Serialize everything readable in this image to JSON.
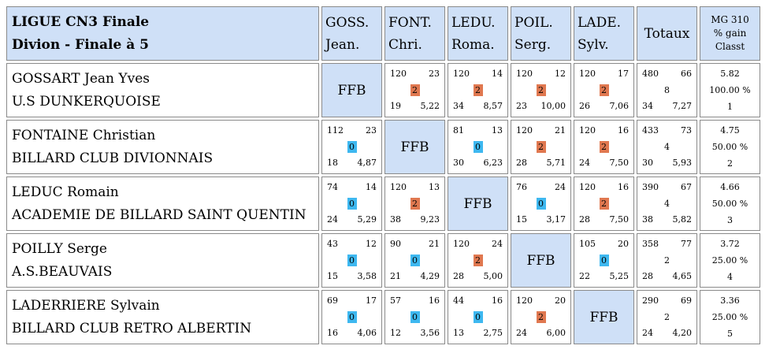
{
  "header": {
    "title_line1": "LIGUE CN3 Finale",
    "title_line2": "Divion - Finale à 5",
    "players": [
      {
        "abbr": "GOSS.",
        "first": "Jean."
      },
      {
        "abbr": "FONT.",
        "first": "Chri."
      },
      {
        "abbr": "LEDU.",
        "first": "Roma."
      },
      {
        "abbr": "POIL.",
        "first": "Serg."
      },
      {
        "abbr": "LADE.",
        "first": "Sylv."
      }
    ],
    "totals_label": "Totaux",
    "mg_line1": "MG 310",
    "mg_line2": "% gain",
    "mg_line3": "Classt"
  },
  "ffb_label": "FFB",
  "colors": {
    "header_bg": "#cfe0f7",
    "win_badge": "#e07850",
    "loss_badge": "#3eb8f0"
  },
  "rows": [
    {
      "name": "GOSSART Jean Yves",
      "club": "U.S DUNKERQUOISE",
      "cells": [
        null,
        {
          "pts": "120",
          "serie": "23",
          "result": "2",
          "reprises": "19",
          "moy": "5,22"
        },
        {
          "pts": "120",
          "serie": "14",
          "result": "2",
          "reprises": "34",
          "moy": "8,57"
        },
        {
          "pts": "120",
          "serie": "12",
          "result": "2",
          "reprises": "23",
          "moy": "10,00"
        },
        {
          "pts": "120",
          "serie": "17",
          "result": "2",
          "reprises": "26",
          "moy": "7,06"
        }
      ],
      "totals": {
        "pts": "480",
        "serie": "66",
        "points": "8",
        "reprises": "34",
        "moy": "7,27"
      },
      "mg": "5.82",
      "gain": "100.00 %",
      "classt": "1"
    },
    {
      "name": "FONTAINE Christian",
      "club": "BILLARD CLUB DIVIONNAIS",
      "cells": [
        {
          "pts": "112",
          "serie": "23",
          "result": "0",
          "reprises": "18",
          "moy": "4,87"
        },
        null,
        {
          "pts": "81",
          "serie": "13",
          "result": "0",
          "reprises": "30",
          "moy": "6,23"
        },
        {
          "pts": "120",
          "serie": "21",
          "result": "2",
          "reprises": "28",
          "moy": "5,71"
        },
        {
          "pts": "120",
          "serie": "16",
          "result": "2",
          "reprises": "24",
          "moy": "7,50"
        }
      ],
      "totals": {
        "pts": "433",
        "serie": "73",
        "points": "4",
        "reprises": "30",
        "moy": "5,93"
      },
      "mg": "4.75",
      "gain": "50.00 %",
      "classt": "2"
    },
    {
      "name": "LEDUC Romain",
      "club": "ACADEMIE DE BILLARD SAINT QUENTIN",
      "cells": [
        {
          "pts": "74",
          "serie": "14",
          "result": "0",
          "reprises": "24",
          "moy": "5,29"
        },
        {
          "pts": "120",
          "serie": "13",
          "result": "2",
          "reprises": "38",
          "moy": "9,23"
        },
        null,
        {
          "pts": "76",
          "serie": "24",
          "result": "0",
          "reprises": "15",
          "moy": "3,17"
        },
        {
          "pts": "120",
          "serie": "16",
          "result": "2",
          "reprises": "28",
          "moy": "7,50"
        }
      ],
      "totals": {
        "pts": "390",
        "serie": "67",
        "points": "4",
        "reprises": "38",
        "moy": "5,82"
      },
      "mg": "4.66",
      "gain": "50.00 %",
      "classt": "3"
    },
    {
      "name": "POILLY Serge",
      "club": "A.S.BEAUVAIS",
      "cells": [
        {
          "pts": "43",
          "serie": "12",
          "result": "0",
          "reprises": "15",
          "moy": "3,58"
        },
        {
          "pts": "90",
          "serie": "21",
          "result": "0",
          "reprises": "21",
          "moy": "4,29"
        },
        {
          "pts": "120",
          "serie": "24",
          "result": "2",
          "reprises": "28",
          "moy": "5,00"
        },
        null,
        {
          "pts": "105",
          "serie": "20",
          "result": "0",
          "reprises": "22",
          "moy": "5,25"
        }
      ],
      "totals": {
        "pts": "358",
        "serie": "77",
        "points": "2",
        "reprises": "28",
        "moy": "4,65"
      },
      "mg": "3.72",
      "gain": "25.00 %",
      "classt": "4"
    },
    {
      "name": "LADERRIERE Sylvain",
      "club": "BILLARD CLUB RETRO ALBERTIN",
      "cells": [
        {
          "pts": "69",
          "serie": "17",
          "result": "0",
          "reprises": "16",
          "moy": "4,06"
        },
        {
          "pts": "57",
          "serie": "16",
          "result": "0",
          "reprises": "12",
          "moy": "3,56"
        },
        {
          "pts": "44",
          "serie": "16",
          "result": "0",
          "reprises": "13",
          "moy": "2,75"
        },
        {
          "pts": "120",
          "serie": "20",
          "result": "2",
          "reprises": "24",
          "moy": "6,00"
        },
        null
      ],
      "totals": {
        "pts": "290",
        "serie": "69",
        "points": "2",
        "reprises": "24",
        "moy": "4,20"
      },
      "mg": "3.36",
      "gain": "25.00 %",
      "classt": "5"
    }
  ]
}
